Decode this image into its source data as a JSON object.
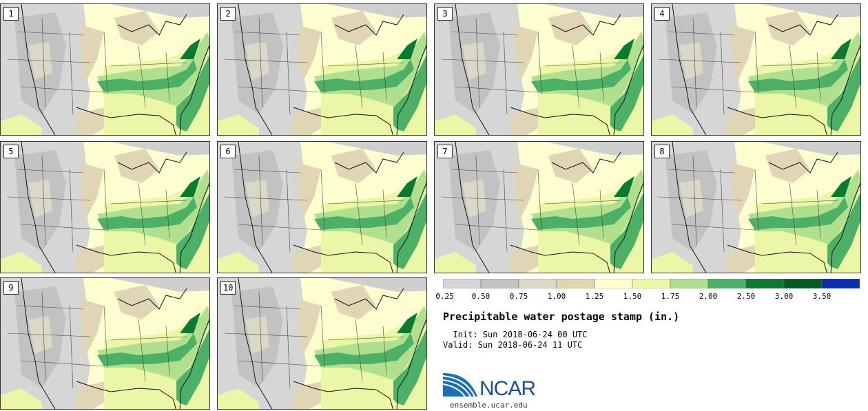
{
  "panels": [
    {
      "label": "1"
    },
    {
      "label": "2"
    },
    {
      "label": "3"
    },
    {
      "label": "4"
    },
    {
      "label": "5"
    },
    {
      "label": "6"
    },
    {
      "label": "7"
    },
    {
      "label": "8"
    },
    {
      "label": "9"
    },
    {
      "label": "10"
    }
  ],
  "colorbar": {
    "colors": [
      "#d6d6d6",
      "#c2c2c2",
      "#dcd8c8",
      "#e0d5b4",
      "#fdfdd0",
      "#ebf7a6",
      "#b0e08e",
      "#4cb066",
      "#0a7a32",
      "#055a23",
      "#0a2eb0"
    ],
    "ticks": [
      "0.25",
      "0.50",
      "0.75",
      "1.00",
      "1.25",
      "1.50",
      "1.75",
      "2.00",
      "2.50",
      "3.00",
      "3.50"
    ]
  },
  "title": "Precipitable water postage stamp (in.)",
  "init": "  Init: Sun 2018-06-24 00 UTC",
  "valid": "Valid: Sun 2018-06-24 11 UTC",
  "logo": {
    "name": "NCAR",
    "url": "ensemble.ucar.edu"
  }
}
